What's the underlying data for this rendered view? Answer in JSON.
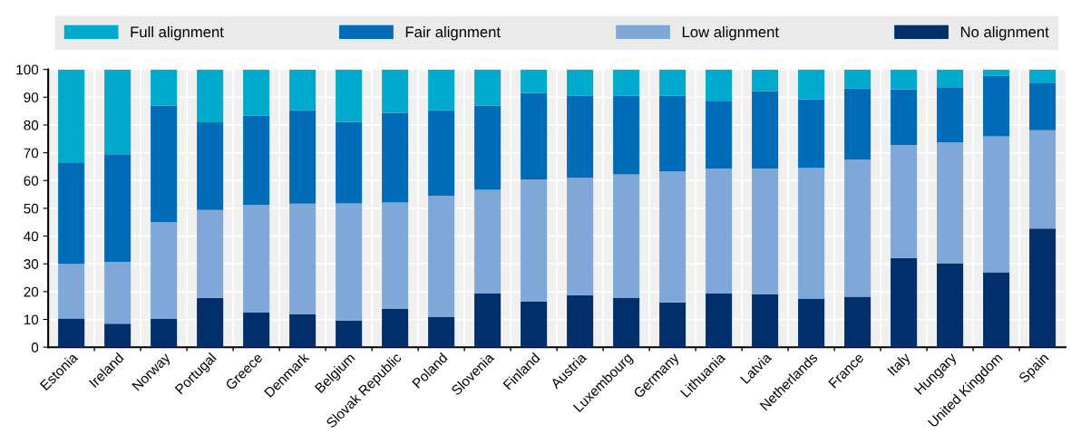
{
  "chart_data": {
    "type": "bar",
    "stacked": true,
    "categories": [
      "Estonia",
      "Ireland",
      "Norway",
      "Portugal",
      "Greece",
      "Denmark",
      "Belgium",
      "Slovak Republic",
      "Poland",
      "Slovenia",
      "Finland",
      "Austria",
      "Luxembourg",
      "Germany",
      "Lithuania",
      "Latvia",
      "Netherlands",
      "France",
      "Italy",
      "Hungary",
      "United Kingdom",
      "Spain"
    ],
    "series": [
      {
        "name": "No alignment",
        "color": "#002f6c",
        "values": [
          10.3,
          8.5,
          10.2,
          17.8,
          12.5,
          11.8,
          9.6,
          13.8,
          10.8,
          19.3,
          16.4,
          18.7,
          17.7,
          16.1,
          19.3,
          19.0,
          17.5,
          18.2,
          32.1,
          30.2,
          27.0,
          42.7
        ]
      },
      {
        "name": "Low alignment",
        "color": "#7fa8d8",
        "values": [
          19.7,
          22.2,
          34.8,
          31.6,
          38.7,
          39.9,
          42.2,
          38.3,
          43.7,
          37.4,
          44.0,
          42.3,
          44.5,
          47.2,
          45.0,
          45.3,
          47.1,
          49.4,
          40.7,
          43.6,
          48.9,
          35.4
        ]
      },
      {
        "name": "Fair alignment",
        "color": "#006bb6",
        "values": [
          36.3,
          38.8,
          42.0,
          31.6,
          32.2,
          33.7,
          29.3,
          32.3,
          30.8,
          30.3,
          31.1,
          29.6,
          28.4,
          27.3,
          24.2,
          27.9,
          24.7,
          25.5,
          20.1,
          19.8,
          21.8,
          17.1
        ]
      },
      {
        "name": "Full alignment",
        "color": "#00aacc",
        "values": [
          33.7,
          30.5,
          13.0,
          19.0,
          16.6,
          14.6,
          18.9,
          15.6,
          14.7,
          13.0,
          8.5,
          9.4,
          9.4,
          9.4,
          11.5,
          7.8,
          10.7,
          6.9,
          7.1,
          6.4,
          2.3,
          4.8
        ]
      }
    ],
    "ylim": [
      0,
      100
    ],
    "yticks": [
      0,
      10,
      20,
      30,
      40,
      50,
      60,
      70,
      80,
      90,
      100
    ],
    "grid": true,
    "legend": "top"
  }
}
